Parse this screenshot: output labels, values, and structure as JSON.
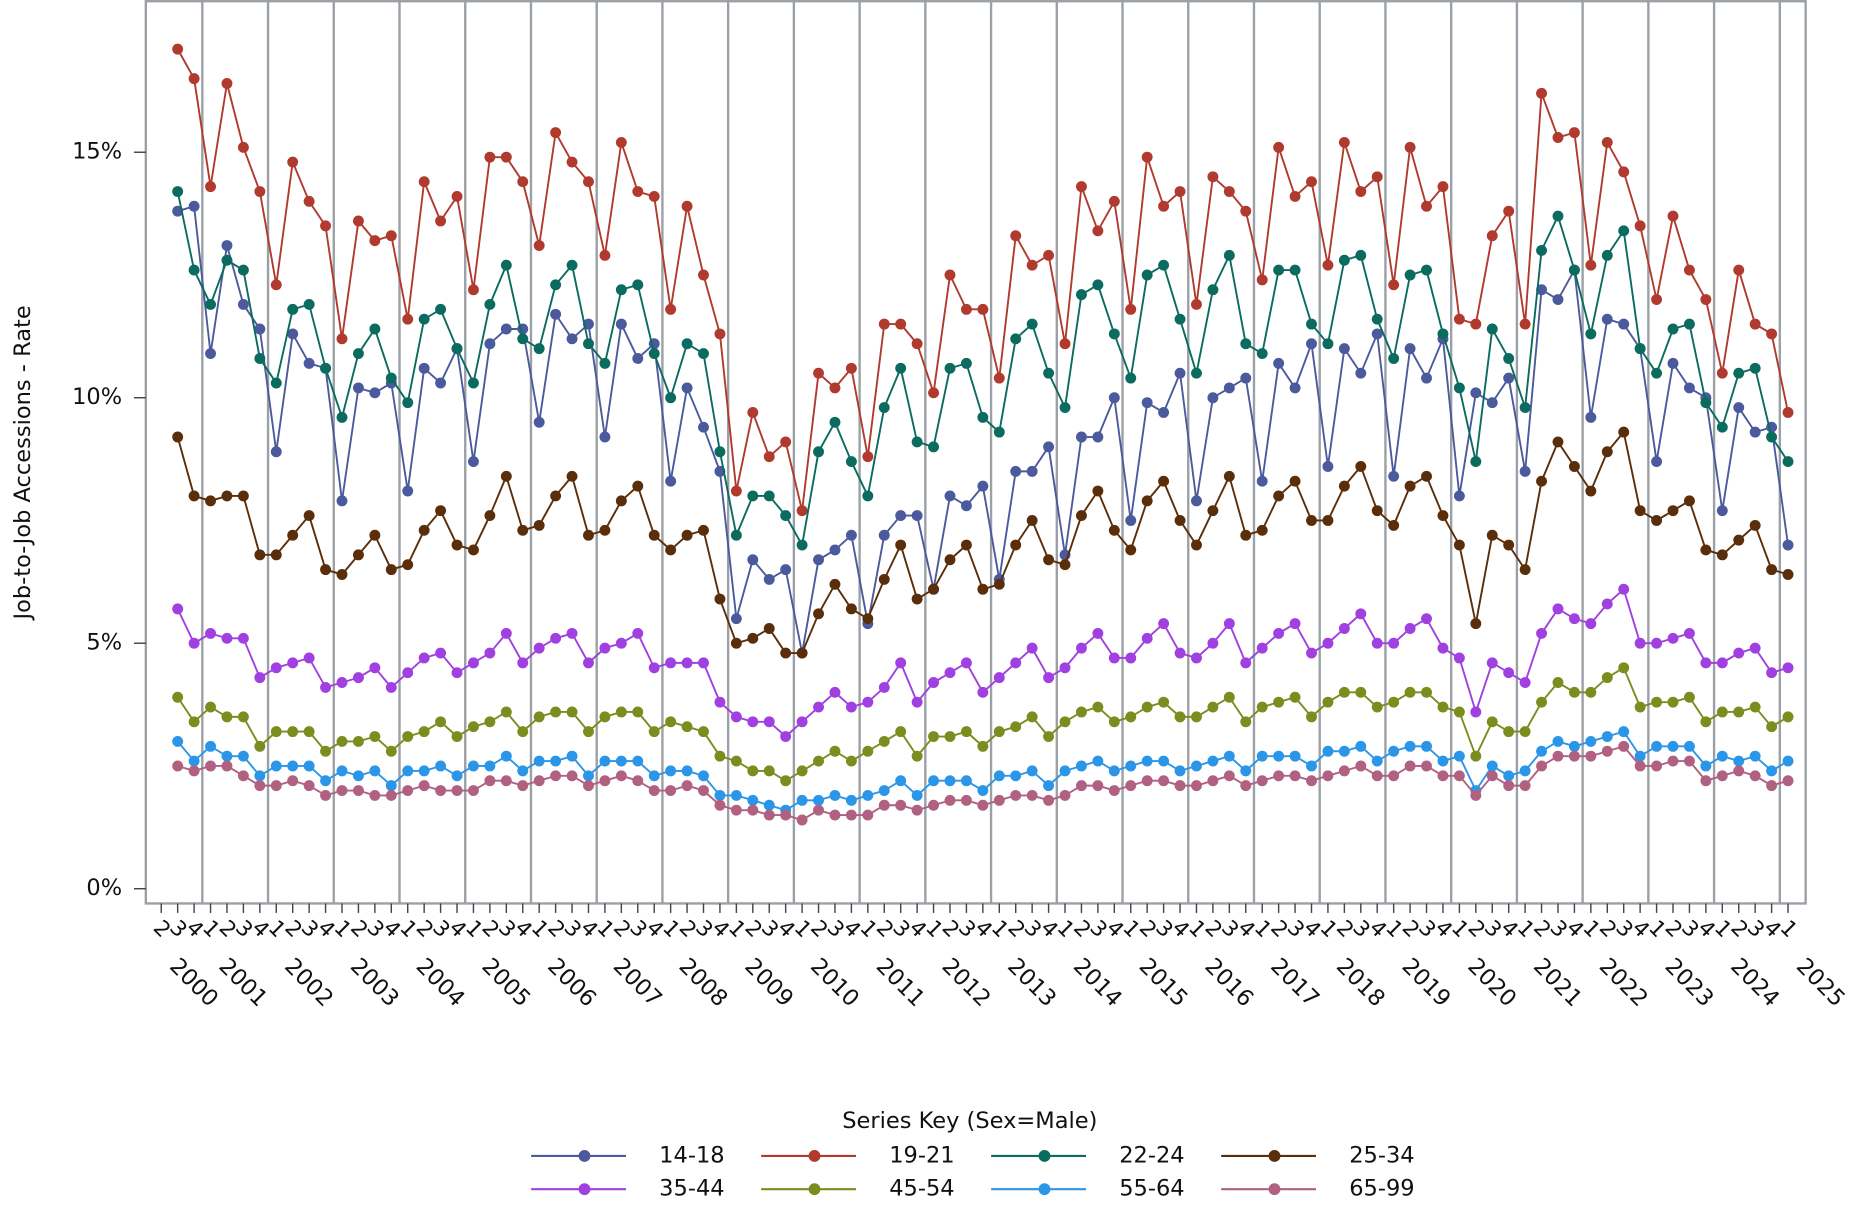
{
  "chart_data": {
    "type": "line",
    "y_label": "Job-to-Job Accessions - Rate",
    "legend_title": "Series Key (Sex=Male)",
    "categories": [
      "2",
      "3",
      "4",
      "1",
      "2",
      "3",
      "4",
      "1",
      "2",
      "3",
      "4",
      "1",
      "2",
      "3",
      "4",
      "1",
      "2",
      "3",
      "4",
      "1",
      "2",
      "3",
      "4",
      "1",
      "2",
      "3",
      "4",
      "1",
      "2",
      "3",
      "4",
      "1",
      "2",
      "3",
      "4",
      "1",
      "2",
      "3",
      "4",
      "1",
      "2",
      "3",
      "4",
      "1",
      "2",
      "3",
      "4",
      "1",
      "2",
      "3",
      "4",
      "1",
      "2",
      "3",
      "4",
      "1",
      "2",
      "3",
      "4",
      "1",
      "2",
      "3",
      "4",
      "1",
      "2",
      "3",
      "4",
      "1",
      "2",
      "3",
      "4",
      "1",
      "2",
      "3",
      "4",
      "1",
      "2",
      "3",
      "4",
      "1",
      "2",
      "3",
      "4",
      "1",
      "2",
      "3",
      "4",
      "1",
      "2",
      "3",
      "4",
      "1",
      "2",
      "3",
      "4",
      "1",
      "2",
      "3",
      "4",
      "1"
    ],
    "years": [
      "2000",
      "2001",
      "2002",
      "2003",
      "2004",
      "2005",
      "2006",
      "2007",
      "2008",
      "2009",
      "2010",
      "2011",
      "2012",
      "2013",
      "2014",
      "2015",
      "2016",
      "2017",
      "2018",
      "2019",
      "2020",
      "2021",
      "2022",
      "2023",
      "2024",
      "2025"
    ],
    "ylim": [
      -0.3,
      18.1
    ],
    "yticks": [
      {
        "value": 0,
        "label": "0%"
      },
      {
        "value": 5,
        "label": "5%"
      },
      {
        "value": 10,
        "label": "10%"
      },
      {
        "value": 15,
        "label": "15%"
      }
    ],
    "series": [
      {
        "name": "14-18",
        "color": "#4a5a9c",
        "values": [
          null,
          13.8,
          13.9,
          10.9,
          13.1,
          11.9,
          11.4,
          8.9,
          11.3,
          10.7,
          10.6,
          7.9,
          10.2,
          10.1,
          10.3,
          8.1,
          10.6,
          10.3,
          11.0,
          8.7,
          11.1,
          11.4,
          11.4,
          9.5,
          11.7,
          11.2,
          11.5,
          9.2,
          11.5,
          10.8,
          11.1,
          8.3,
          10.2,
          9.4,
          8.5,
          5.5,
          6.7,
          6.3,
          6.5,
          4.8,
          6.7,
          6.9,
          7.2,
          5.4,
          7.2,
          7.6,
          7.6,
          6.1,
          8.0,
          7.8,
          8.2,
          6.3,
          8.5,
          8.5,
          9.0,
          6.8,
          9.2,
          9.2,
          10.0,
          7.5,
          9.9,
          9.7,
          10.5,
          7.9,
          10.0,
          10.2,
          10.4,
          8.3,
          10.7,
          10.2,
          11.1,
          8.6,
          11.0,
          10.5,
          11.3,
          8.4,
          11.0,
          10.4,
          11.2,
          8.0,
          10.1,
          9.9,
          10.4,
          8.5,
          12.2,
          12.0,
          12.6,
          9.6,
          11.6,
          11.5,
          11.0,
          8.7,
          10.7,
          10.2,
          10.0,
          7.7,
          9.8,
          9.3,
          9.4,
          7.0
        ]
      },
      {
        "name": "19-21",
        "color": "#b03a2e",
        "values": [
          null,
          17.1,
          16.5,
          14.3,
          16.4,
          15.1,
          14.2,
          12.3,
          14.8,
          14.0,
          13.5,
          11.2,
          13.6,
          13.2,
          13.3,
          11.6,
          14.4,
          13.6,
          14.1,
          12.2,
          14.9,
          14.9,
          14.4,
          13.1,
          15.4,
          14.8,
          14.4,
          12.9,
          15.2,
          14.2,
          14.1,
          11.8,
          13.9,
          12.5,
          11.3,
          8.1,
          9.7,
          8.8,
          9.1,
          7.7,
          10.5,
          10.2,
          10.6,
          8.8,
          11.5,
          11.5,
          11.1,
          10.1,
          12.5,
          11.8,
          11.8,
          10.4,
          13.3,
          12.7,
          12.9,
          11.1,
          14.3,
          13.4,
          14.0,
          11.8,
          14.9,
          13.9,
          14.2,
          11.9,
          14.5,
          14.2,
          13.8,
          12.4,
          15.1,
          14.1,
          14.4,
          12.7,
          15.2,
          14.2,
          14.5,
          12.3,
          15.1,
          13.9,
          14.3,
          11.6,
          11.5,
          13.3,
          13.8,
          11.5,
          16.2,
          15.3,
          15.4,
          12.7,
          15.2,
          14.6,
          13.5,
          12.0,
          13.7,
          12.6,
          12.0,
          10.5,
          12.6,
          11.5,
          11.3,
          9.7
        ]
      },
      {
        "name": "22-24",
        "color": "#0b6b5e",
        "values": [
          null,
          14.2,
          12.6,
          11.9,
          12.8,
          12.6,
          10.8,
          10.3,
          11.8,
          11.9,
          10.6,
          9.6,
          10.9,
          11.4,
          10.4,
          9.9,
          11.6,
          11.8,
          11.0,
          10.3,
          11.9,
          12.7,
          11.2,
          11.0,
          12.3,
          12.7,
          11.1,
          10.7,
          12.2,
          12.3,
          10.9,
          10.0,
          11.1,
          10.9,
          8.9,
          7.2,
          8.0,
          8.0,
          7.6,
          7.0,
          8.9,
          9.5,
          8.7,
          8.0,
          9.8,
          10.6,
          9.1,
          9.0,
          10.6,
          10.7,
          9.6,
          9.3,
          11.2,
          11.5,
          10.5,
          9.8,
          12.1,
          12.3,
          11.3,
          10.4,
          12.5,
          12.7,
          11.6,
          10.5,
          12.2,
          12.9,
          11.1,
          10.9,
          12.6,
          12.6,
          11.5,
          11.1,
          12.8,
          12.9,
          11.6,
          10.8,
          12.5,
          12.6,
          11.3,
          10.2,
          8.7,
          11.4,
          10.8,
          9.8,
          13.0,
          13.7,
          12.6,
          11.3,
          12.9,
          13.4,
          11.0,
          10.5,
          11.4,
          11.5,
          9.9,
          9.4,
          10.5,
          10.6,
          9.2,
          8.7
        ]
      },
      {
        "name": "25-34",
        "color": "#5a2e0a",
        "values": [
          null,
          9.2,
          8.0,
          7.9,
          8.0,
          8.0,
          6.8,
          6.8,
          7.2,
          7.6,
          6.5,
          6.4,
          6.8,
          7.2,
          6.5,
          6.6,
          7.3,
          7.7,
          7.0,
          6.9,
          7.6,
          8.4,
          7.3,
          7.4,
          8.0,
          8.4,
          7.2,
          7.3,
          7.9,
          8.2,
          7.2,
          6.9,
          7.2,
          7.3,
          5.9,
          5.0,
          5.1,
          5.3,
          4.8,
          4.8,
          5.6,
          6.2,
          5.7,
          5.5,
          6.3,
          7.0,
          5.9,
          6.1,
          6.7,
          7.0,
          6.1,
          6.2,
          7.0,
          7.5,
          6.7,
          6.6,
          7.6,
          8.1,
          7.3,
          6.9,
          7.9,
          8.3,
          7.5,
          7.0,
          7.7,
          8.4,
          7.2,
          7.3,
          8.0,
          8.3,
          7.5,
          7.5,
          8.2,
          8.6,
          7.7,
          7.4,
          8.2,
          8.4,
          7.6,
          7.0,
          5.4,
          7.2,
          7.0,
          6.5,
          8.3,
          9.1,
          8.6,
          8.1,
          8.9,
          9.3,
          7.7,
          7.5,
          7.7,
          7.9,
          6.9,
          6.8,
          7.1,
          7.4,
          6.5,
          6.4
        ]
      },
      {
        "name": "35-44",
        "color": "#a040e0",
        "values": [
          null,
          5.7,
          5.0,
          5.2,
          5.1,
          5.1,
          4.3,
          4.5,
          4.6,
          4.7,
          4.1,
          4.2,
          4.3,
          4.5,
          4.1,
          4.4,
          4.7,
          4.8,
          4.4,
          4.6,
          4.8,
          5.2,
          4.6,
          4.9,
          5.1,
          5.2,
          4.6,
          4.9,
          5.0,
          5.2,
          4.5,
          4.6,
          4.6,
          4.6,
          3.8,
          3.5,
          3.4,
          3.4,
          3.1,
          3.4,
          3.7,
          4.0,
          3.7,
          3.8,
          4.1,
          4.6,
          3.8,
          4.2,
          4.4,
          4.6,
          4.0,
          4.3,
          4.6,
          4.9,
          4.3,
          4.5,
          4.9,
          5.2,
          4.7,
          4.7,
          5.1,
          5.4,
          4.8,
          4.7,
          5.0,
          5.4,
          4.6,
          4.9,
          5.2,
          5.4,
          4.8,
          5.0,
          5.3,
          5.6,
          5.0,
          5.0,
          5.3,
          5.5,
          4.9,
          4.7,
          3.6,
          4.6,
          4.4,
          4.2,
          5.2,
          5.7,
          5.5,
          5.4,
          5.8,
          6.1,
          5.0,
          5.0,
          5.1,
          5.2,
          4.6,
          4.6,
          4.8,
          4.9,
          4.4,
          4.5
        ]
      },
      {
        "name": "45-54",
        "color": "#7d8c1e",
        "values": [
          null,
          3.9,
          3.4,
          3.7,
          3.5,
          3.5,
          2.9,
          3.2,
          3.2,
          3.2,
          2.8,
          3.0,
          3.0,
          3.1,
          2.8,
          3.1,
          3.2,
          3.4,
          3.1,
          3.3,
          3.4,
          3.6,
          3.2,
          3.5,
          3.6,
          3.6,
          3.2,
          3.5,
          3.6,
          3.6,
          3.2,
          3.4,
          3.3,
          3.2,
          2.7,
          2.6,
          2.4,
          2.4,
          2.2,
          2.4,
          2.6,
          2.8,
          2.6,
          2.8,
          3.0,
          3.2,
          2.7,
          3.1,
          3.1,
          3.2,
          2.9,
          3.2,
          3.3,
          3.5,
          3.1,
          3.4,
          3.6,
          3.7,
          3.4,
          3.5,
          3.7,
          3.8,
          3.5,
          3.5,
          3.7,
          3.9,
          3.4,
          3.7,
          3.8,
          3.9,
          3.5,
          3.8,
          4.0,
          4.0,
          3.7,
          3.8,
          4.0,
          4.0,
          3.7,
          3.6,
          2.7,
          3.4,
          3.2,
          3.2,
          3.8,
          4.2,
          4.0,
          4.0,
          4.3,
          4.5,
          3.7,
          3.8,
          3.8,
          3.9,
          3.4,
          3.6,
          3.6,
          3.7,
          3.3,
          3.5
        ]
      },
      {
        "name": "55-64",
        "color": "#2b95e8",
        "values": [
          null,
          3.0,
          2.6,
          2.9,
          2.7,
          2.7,
          2.3,
          2.5,
          2.5,
          2.5,
          2.2,
          2.4,
          2.3,
          2.4,
          2.1,
          2.4,
          2.4,
          2.5,
          2.3,
          2.5,
          2.5,
          2.7,
          2.4,
          2.6,
          2.6,
          2.7,
          2.3,
          2.6,
          2.6,
          2.6,
          2.3,
          2.4,
          2.4,
          2.3,
          1.9,
          1.9,
          1.8,
          1.7,
          1.6,
          1.8,
          1.8,
          1.9,
          1.8,
          1.9,
          2.0,
          2.2,
          1.9,
          2.2,
          2.2,
          2.2,
          2.0,
          2.3,
          2.3,
          2.4,
          2.1,
          2.4,
          2.5,
          2.6,
          2.4,
          2.5,
          2.6,
          2.6,
          2.4,
          2.5,
          2.6,
          2.7,
          2.4,
          2.7,
          2.7,
          2.7,
          2.5,
          2.8,
          2.8,
          2.9,
          2.6,
          2.8,
          2.9,
          2.9,
          2.6,
          2.7,
          2.0,
          2.5,
          2.3,
          2.4,
          2.8,
          3.0,
          2.9,
          3.0,
          3.1,
          3.2,
          2.7,
          2.9,
          2.9,
          2.9,
          2.5,
          2.7,
          2.6,
          2.7,
          2.4,
          2.6
        ]
      },
      {
        "name": "65-99",
        "color": "#b06080",
        "values": [
          null,
          2.5,
          2.4,
          2.5,
          2.5,
          2.3,
          2.1,
          2.1,
          2.2,
          2.1,
          1.9,
          2.0,
          2.0,
          1.9,
          1.9,
          2.0,
          2.1,
          2.0,
          2.0,
          2.0,
          2.2,
          2.2,
          2.1,
          2.2,
          2.3,
          2.3,
          2.1,
          2.2,
          2.3,
          2.2,
          2.0,
          2.0,
          2.1,
          2.0,
          1.7,
          1.6,
          1.6,
          1.5,
          1.5,
          1.4,
          1.6,
          1.5,
          1.5,
          1.5,
          1.7,
          1.7,
          1.6,
          1.7,
          1.8,
          1.8,
          1.7,
          1.8,
          1.9,
          1.9,
          1.8,
          1.9,
          2.1,
          2.1,
          2.0,
          2.1,
          2.2,
          2.2,
          2.1,
          2.1,
          2.2,
          2.3,
          2.1,
          2.2,
          2.3,
          2.3,
          2.2,
          2.3,
          2.4,
          2.5,
          2.3,
          2.3,
          2.5,
          2.5,
          2.3,
          2.3,
          1.9,
          2.3,
          2.1,
          2.1,
          2.5,
          2.7,
          2.7,
          2.7,
          2.8,
          2.9,
          2.5,
          2.5,
          2.6,
          2.6,
          2.2,
          2.3,
          2.4,
          2.3,
          2.1,
          2.2
        ]
      }
    ]
  }
}
